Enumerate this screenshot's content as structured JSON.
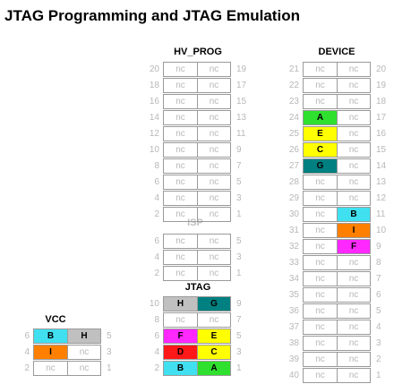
{
  "title": "JTAG Programming and JTAG Emulation",
  "colors": {
    "grid_border": "#9a9a9a",
    "nc_text": "#b8b8b8",
    "A": "#2fe02f",
    "B": "#40e0f0",
    "C": "#ffff00",
    "D": "#ff1818",
    "E": "#ffff00",
    "F": "#ff28ff",
    "G": "#008080",
    "H": "#c0c0c0",
    "I": "#ff8000"
  },
  "blocks": {
    "hv_prog": {
      "title": "HV_PROG",
      "rows": [
        {
          "lp": "20",
          "c1": "nc",
          "c2": "nc",
          "rp": "19"
        },
        {
          "lp": "18",
          "c1": "nc",
          "c2": "nc",
          "rp": "17"
        },
        {
          "lp": "16",
          "c1": "nc",
          "c2": "nc",
          "rp": "15"
        },
        {
          "lp": "14",
          "c1": "nc",
          "c2": "nc",
          "rp": "13"
        },
        {
          "lp": "12",
          "c1": "nc",
          "c2": "nc",
          "rp": "11"
        },
        {
          "lp": "10",
          "c1": "nc",
          "c2": "nc",
          "rp": "9"
        },
        {
          "lp": "8",
          "c1": "nc",
          "c2": "nc",
          "rp": "7"
        },
        {
          "lp": "6",
          "c1": "nc",
          "c2": "nc",
          "rp": "5"
        },
        {
          "lp": "4",
          "c1": "nc",
          "c2": "nc",
          "rp": "3"
        },
        {
          "lp": "2",
          "c1": "nc",
          "c2": "nc",
          "rp": "1"
        }
      ]
    },
    "isp": {
      "title": "ISP",
      "rows": [
        {
          "lp": "6",
          "c1": "nc",
          "c2": "nc",
          "rp": "5"
        },
        {
          "lp": "4",
          "c1": "nc",
          "c2": "nc",
          "rp": "3"
        },
        {
          "lp": "2",
          "c1": "nc",
          "c2": "nc",
          "rp": "1"
        }
      ]
    },
    "jtag": {
      "title": "JTAG",
      "rows": [
        {
          "lp": "10",
          "c1": "H",
          "c2": "G",
          "rp": "9"
        },
        {
          "lp": "8",
          "c1": "nc",
          "c2": "nc",
          "rp": "7"
        },
        {
          "lp": "6",
          "c1": "F",
          "c2": "E",
          "rp": "5"
        },
        {
          "lp": "4",
          "c1": "D",
          "c2": "C",
          "rp": "3"
        },
        {
          "lp": "2",
          "c1": "B",
          "c2": "A",
          "rp": "1"
        }
      ]
    },
    "vcc": {
      "title": "VCC",
      "rows": [
        {
          "lp": "6",
          "c1": "B",
          "c2": "H",
          "rp": "5"
        },
        {
          "lp": "4",
          "c1": "I",
          "c2": "nc",
          "rp": "3"
        },
        {
          "lp": "2",
          "c1": "nc",
          "c2": "nc",
          "rp": "1"
        }
      ]
    },
    "device": {
      "title": "DEVICE",
      "rows": [
        {
          "lp": "21",
          "c1": "nc",
          "c2": "nc",
          "rp": "20"
        },
        {
          "lp": "22",
          "c1": "nc",
          "c2": "nc",
          "rp": "19"
        },
        {
          "lp": "23",
          "c1": "nc",
          "c2": "nc",
          "rp": "18"
        },
        {
          "lp": "24",
          "c1": "A",
          "c2": "nc",
          "rp": "17"
        },
        {
          "lp": "25",
          "c1": "E",
          "c2": "nc",
          "rp": "16"
        },
        {
          "lp": "26",
          "c1": "C",
          "c2": "nc",
          "rp": "15"
        },
        {
          "lp": "27",
          "c1": "G",
          "c2": "nc",
          "rp": "14"
        },
        {
          "lp": "28",
          "c1": "nc",
          "c2": "nc",
          "rp": "13"
        },
        {
          "lp": "29",
          "c1": "nc",
          "c2": "nc",
          "rp": "12"
        },
        {
          "lp": "30",
          "c1": "nc",
          "c2": "B",
          "rp": "11"
        },
        {
          "lp": "31",
          "c1": "nc",
          "c2": "I",
          "rp": "10"
        },
        {
          "lp": "32",
          "c1": "nc",
          "c2": "F",
          "rp": "9"
        },
        {
          "lp": "33",
          "c1": "nc",
          "c2": "nc",
          "rp": "8"
        },
        {
          "lp": "34",
          "c1": "nc",
          "c2": "nc",
          "rp": "7"
        },
        {
          "lp": "35",
          "c1": "nc",
          "c2": "nc",
          "rp": "6"
        },
        {
          "lp": "36",
          "c1": "nc",
          "c2": "nc",
          "rp": "5"
        },
        {
          "lp": "37",
          "c1": "nc",
          "c2": "nc",
          "rp": "4"
        },
        {
          "lp": "38",
          "c1": "nc",
          "c2": "nc",
          "rp": "3"
        },
        {
          "lp": "39",
          "c1": "nc",
          "c2": "nc",
          "rp": "2"
        },
        {
          "lp": "40",
          "c1": "nc",
          "c2": "nc",
          "rp": "1"
        }
      ]
    }
  }
}
